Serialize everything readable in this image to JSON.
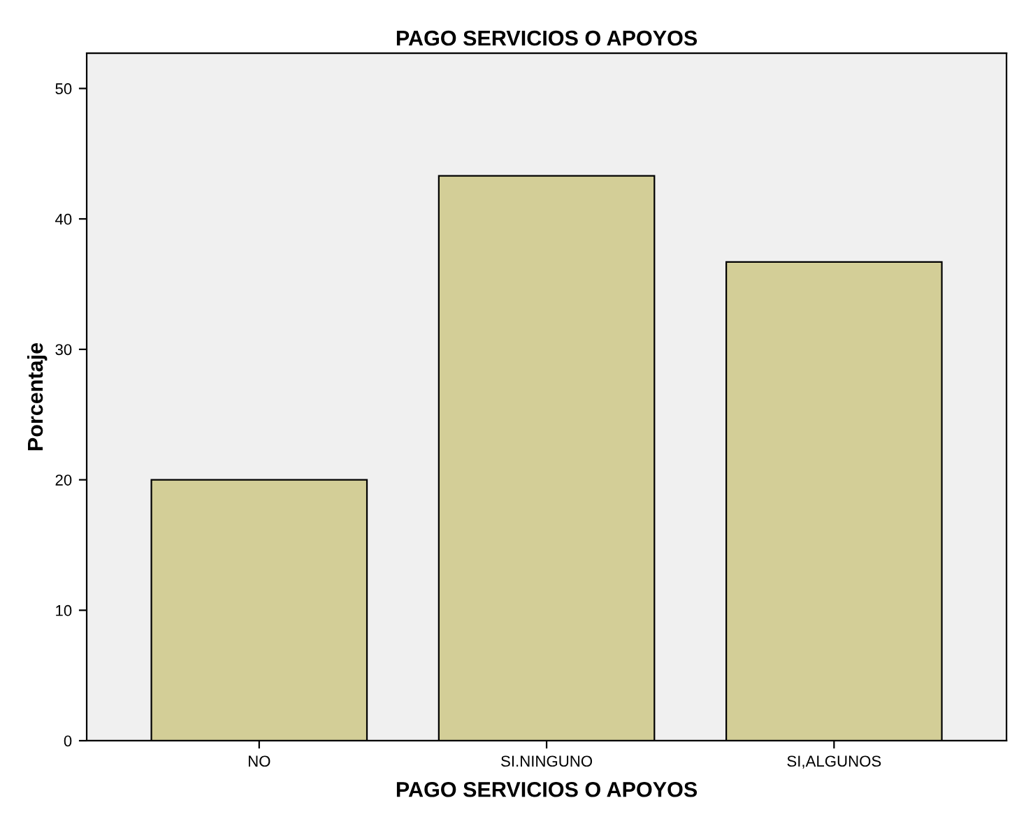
{
  "chart_data": {
    "type": "bar",
    "title": "PAGO SERVICIOS O APOYOS",
    "xlabel": "PAGO SERVICIOS O APOYOS",
    "ylabel": "Porcentaje",
    "categories": [
      "NO",
      "SI.NINGUNO",
      "SI,ALGUNOS"
    ],
    "values": [
      20.0,
      43.3,
      36.7
    ],
    "color": "#d3ce97",
    "ylim": [
      0,
      52.7
    ],
    "yticks": [
      0,
      10,
      20,
      30,
      40,
      50
    ],
    "grid": false,
    "legend": false
  }
}
